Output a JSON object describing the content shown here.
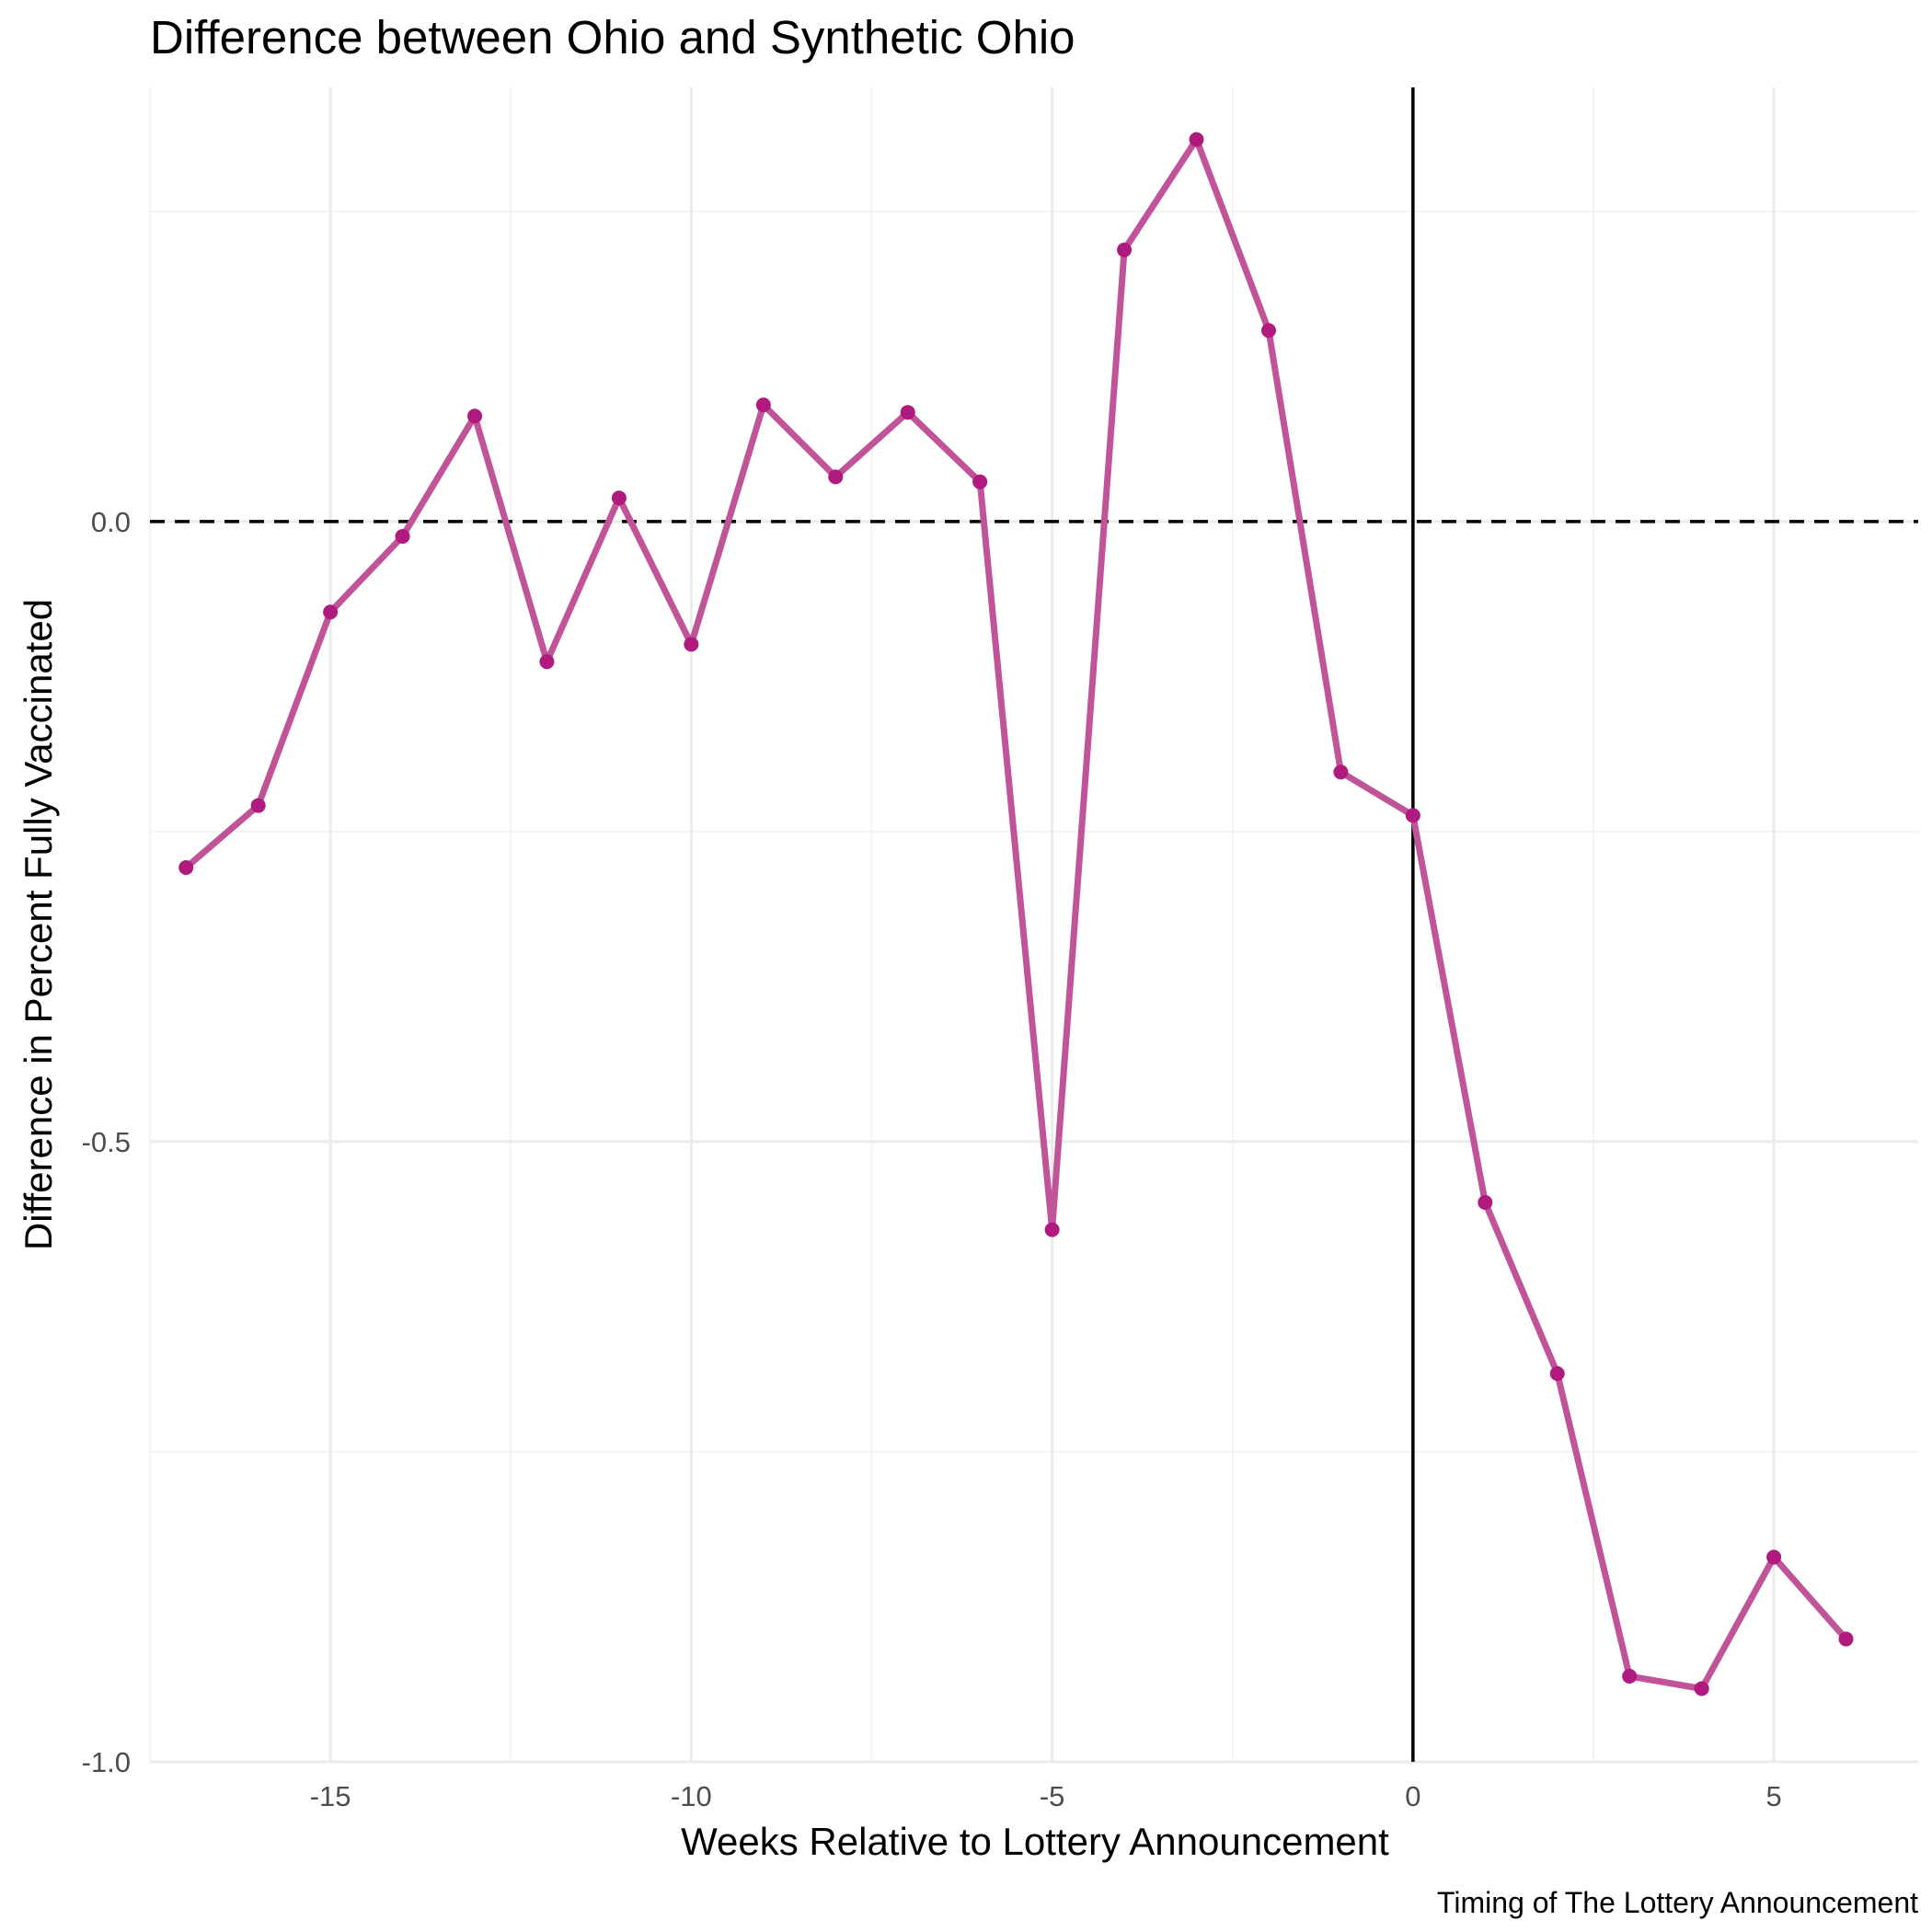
{
  "chart_data": {
    "type": "line",
    "title": "Difference between Ohio and Synthetic Ohio",
    "xlabel": "Weeks Relative to Lottery Announcement",
    "ylabel": "Difference in Percent Fully Vaccinated",
    "caption": "Timing of The Lottery Announcement",
    "xlim": [
      -17.5,
      7
    ],
    "ylim": [
      -1.0,
      0.35
    ],
    "x_ticks": [
      -15,
      -10,
      -5,
      0,
      5
    ],
    "x_tick_labels": [
      "-15",
      "-10",
      "-5",
      "0",
      "5"
    ],
    "y_ticks": [
      0.0,
      -0.5,
      -1.0
    ],
    "y_tick_labels": [
      "0.0",
      "-0.5",
      "-1.0"
    ],
    "grid": true,
    "reference_lines": {
      "hline_y": 0.0,
      "hline_style": "dashed",
      "vline_x": 0,
      "vline_style": "solid"
    },
    "line_color": "#c15499",
    "point_color": "#b0197e",
    "x": [
      -17,
      -16,
      -15,
      -14,
      -13,
      -12,
      -11,
      -10,
      -9,
      -8,
      -7,
      -6,
      -5,
      -4,
      -3,
      -2,
      -1,
      0,
      1,
      2,
      3,
      4,
      5,
      6
    ],
    "y": [
      -0.279,
      -0.229,
      -0.073,
      -0.012,
      0.085,
      -0.113,
      0.019,
      -0.099,
      0.094,
      0.036,
      0.088,
      0.032,
      -0.571,
      0.219,
      0.308,
      0.154,
      -0.202,
      -0.237,
      -0.549,
      -0.687,
      -0.931,
      -0.941,
      -0.835,
      -0.901
    ]
  }
}
